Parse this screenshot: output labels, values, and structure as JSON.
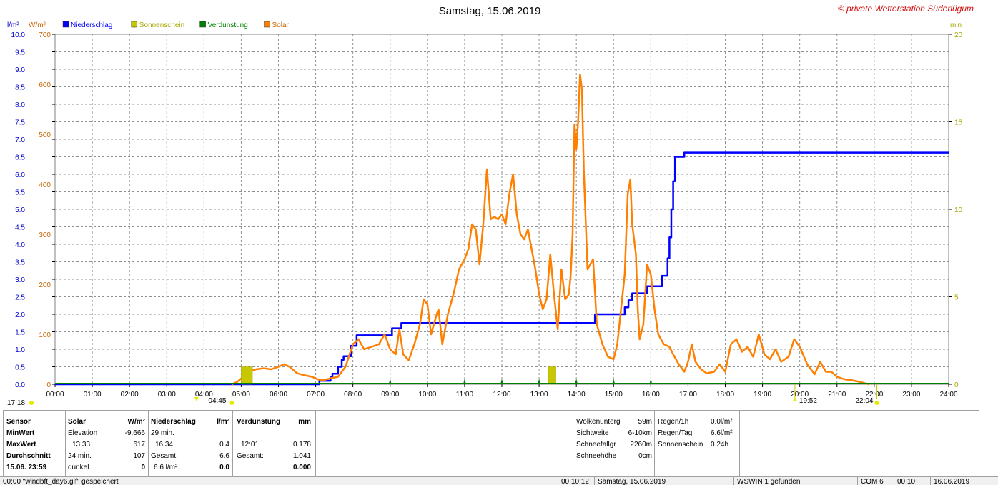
{
  "chart_data": {
    "type": "line",
    "title": "Samstag, 15.06.2019",
    "copyright": "© private Wetterstation Süderlügum",
    "left_unit_rain": "l/m²",
    "left_unit_solar": "W/m²",
    "right_unit": "min",
    "legend": [
      {
        "name": "Niederschlag",
        "color": "#0000ff"
      },
      {
        "name": "Sonnenschein",
        "color": "#c8c800"
      },
      {
        "name": "Verdunstung",
        "color": "#008000"
      },
      {
        "name": "Solar",
        "color": "#ff8000"
      }
    ],
    "x_range_hours": [
      0,
      24
    ],
    "x_ticks": [
      "00:00",
      "01:00",
      "02:00",
      "03:00",
      "04:00",
      "05:00",
      "06:00",
      "07:00",
      "08:00",
      "09:00",
      "10:00",
      "11:00",
      "12:00",
      "13:00",
      "14:00",
      "15:00",
      "16:00",
      "17:00",
      "18:00",
      "19:00",
      "20:00",
      "21:00",
      "22:00",
      "23:00",
      "24:00"
    ],
    "rain_axis": {
      "range": [
        0,
        10
      ],
      "ticks": [
        "0.0",
        "0.5",
        "1.0",
        "1.5",
        "2.0",
        "2.5",
        "3.0",
        "3.5",
        "4.0",
        "4.5",
        "5.0",
        "5.5",
        "6.0",
        "6.5",
        "7.0",
        "7.5",
        "8.0",
        "8.5",
        "9.0",
        "9.5",
        "10.0"
      ]
    },
    "solar_axis": {
      "range": [
        0,
        700
      ],
      "ticks": [
        "0",
        "100",
        "200",
        "300",
        "400",
        "500",
        "600",
        "700"
      ]
    },
    "sun_axis": {
      "range": [
        0,
        20
      ],
      "ticks": [
        "0",
        "5",
        "10",
        "15",
        "20"
      ]
    },
    "annotations": {
      "moon_rise": "17:18",
      "sunrise_marker": "04:45",
      "sunset_marker": "19:52",
      "moon_set": "22:04",
      "marker_times_h": [
        -1.2,
        4.75,
        19.87,
        22.07
      ]
    },
    "series": [
      {
        "name": "Niederschlag",
        "axis": "rain",
        "color": "#0000ff",
        "step": true,
        "points": [
          [
            0,
            0
          ],
          [
            7.05,
            0
          ],
          [
            7.1,
            0.1
          ],
          [
            7.3,
            0.1
          ],
          [
            7.4,
            0.2
          ],
          [
            7.45,
            0.3
          ],
          [
            7.6,
            0.5
          ],
          [
            7.7,
            0.7
          ],
          [
            7.75,
            0.8
          ],
          [
            7.95,
            1.1
          ],
          [
            8.1,
            1.4
          ],
          [
            9.0,
            1.4
          ],
          [
            9.05,
            1.6
          ],
          [
            9.25,
            1.6
          ],
          [
            9.3,
            1.75
          ],
          [
            14.45,
            1.75
          ],
          [
            14.5,
            2.0
          ],
          [
            15.25,
            2.0
          ],
          [
            15.3,
            2.2
          ],
          [
            15.4,
            2.4
          ],
          [
            15.5,
            2.6
          ],
          [
            15.85,
            2.6
          ],
          [
            15.9,
            2.8
          ],
          [
            16.2,
            2.8
          ],
          [
            16.3,
            3.1
          ],
          [
            16.45,
            3.6
          ],
          [
            16.5,
            4.2
          ],
          [
            16.55,
            5.0
          ],
          [
            16.6,
            5.8
          ],
          [
            16.65,
            6.5
          ],
          [
            16.85,
            6.5
          ],
          [
            16.9,
            6.62
          ],
          [
            24,
            6.62
          ]
        ]
      },
      {
        "name": "Solar",
        "axis": "solar",
        "color": "#ff8000",
        "points": [
          [
            4.75,
            0
          ],
          [
            4.9,
            5
          ],
          [
            5.05,
            15
          ],
          [
            5.2,
            25
          ],
          [
            5.4,
            30
          ],
          [
            5.6,
            32
          ],
          [
            5.8,
            30
          ],
          [
            6.0,
            35
          ],
          [
            6.15,
            40
          ],
          [
            6.3,
            35
          ],
          [
            6.5,
            22
          ],
          [
            6.7,
            18
          ],
          [
            6.9,
            15
          ],
          [
            7.05,
            10
          ],
          [
            7.2,
            8
          ],
          [
            7.4,
            12
          ],
          [
            7.6,
            15
          ],
          [
            7.8,
            35
          ],
          [
            8.0,
            80
          ],
          [
            8.15,
            90
          ],
          [
            8.3,
            70
          ],
          [
            8.5,
            75
          ],
          [
            8.7,
            80
          ],
          [
            8.85,
            100
          ],
          [
            9.0,
            70
          ],
          [
            9.15,
            60
          ],
          [
            9.25,
            110
          ],
          [
            9.35,
            60
          ],
          [
            9.5,
            48
          ],
          [
            9.65,
            80
          ],
          [
            9.8,
            120
          ],
          [
            9.9,
            170
          ],
          [
            10.0,
            160
          ],
          [
            10.1,
            100
          ],
          [
            10.25,
            140
          ],
          [
            10.3,
            150
          ],
          [
            10.4,
            80
          ],
          [
            10.55,
            140
          ],
          [
            10.7,
            180
          ],
          [
            10.85,
            230
          ],
          [
            11.0,
            250
          ],
          [
            11.1,
            270
          ],
          [
            11.2,
            320
          ],
          [
            11.3,
            310
          ],
          [
            11.4,
            240
          ],
          [
            11.5,
            320
          ],
          [
            11.6,
            430
          ],
          [
            11.7,
            330
          ],
          [
            11.8,
            335
          ],
          [
            11.9,
            330
          ],
          [
            12.0,
            340
          ],
          [
            12.1,
            320
          ],
          [
            12.2,
            380
          ],
          [
            12.3,
            420
          ],
          [
            12.4,
            340
          ],
          [
            12.5,
            300
          ],
          [
            12.6,
            290
          ],
          [
            12.7,
            310
          ],
          [
            12.8,
            270
          ],
          [
            12.9,
            230
          ],
          [
            13.0,
            180
          ],
          [
            13.1,
            150
          ],
          [
            13.2,
            170
          ],
          [
            13.3,
            260
          ],
          [
            13.4,
            180
          ],
          [
            13.5,
            110
          ],
          [
            13.6,
            230
          ],
          [
            13.7,
            170
          ],
          [
            13.8,
            180
          ],
          [
            13.85,
            220
          ],
          [
            13.9,
            300
          ],
          [
            13.95,
            520
          ],
          [
            14.0,
            470
          ],
          [
            14.05,
            530
          ],
          [
            14.1,
            620
          ],
          [
            14.15,
            590
          ],
          [
            14.2,
            430
          ],
          [
            14.3,
            230
          ],
          [
            14.45,
            250
          ],
          [
            14.55,
            120
          ],
          [
            14.7,
            80
          ],
          [
            14.85,
            55
          ],
          [
            15.0,
            50
          ],
          [
            15.1,
            80
          ],
          [
            15.2,
            150
          ],
          [
            15.3,
            220
          ],
          [
            15.38,
            380
          ],
          [
            15.45,
            410
          ],
          [
            15.5,
            320
          ],
          [
            15.6,
            260
          ],
          [
            15.65,
            150
          ],
          [
            15.7,
            90
          ],
          [
            15.8,
            120
          ],
          [
            15.9,
            240
          ],
          [
            16.0,
            220
          ],
          [
            16.1,
            150
          ],
          [
            16.2,
            100
          ],
          [
            16.35,
            80
          ],
          [
            16.5,
            75
          ],
          [
            16.6,
            60
          ],
          [
            16.75,
            40
          ],
          [
            16.9,
            25
          ],
          [
            17.0,
            45
          ],
          [
            17.1,
            80
          ],
          [
            17.2,
            45
          ],
          [
            17.35,
            30
          ],
          [
            17.5,
            22
          ],
          [
            17.7,
            25
          ],
          [
            17.85,
            40
          ],
          [
            18.0,
            25
          ],
          [
            18.15,
            80
          ],
          [
            18.3,
            90
          ],
          [
            18.45,
            65
          ],
          [
            18.6,
            75
          ],
          [
            18.75,
            55
          ],
          [
            18.9,
            100
          ],
          [
            19.05,
            60
          ],
          [
            19.2,
            50
          ],
          [
            19.35,
            70
          ],
          [
            19.5,
            45
          ],
          [
            19.7,
            55
          ],
          [
            19.85,
            90
          ],
          [
            20.0,
            75
          ],
          [
            20.2,
            40
          ],
          [
            20.4,
            20
          ],
          [
            20.55,
            45
          ],
          [
            20.7,
            25
          ],
          [
            20.85,
            25
          ],
          [
            21.0,
            15
          ],
          [
            21.2,
            10
          ],
          [
            21.4,
            8
          ],
          [
            21.6,
            5
          ],
          [
            21.75,
            2
          ],
          [
            21.85,
            0
          ]
        ]
      },
      {
        "name": "Sonnenschein",
        "axis": "sun",
        "color": "#c8c800",
        "bars": [
          [
            5.0,
            5.3,
            1.0
          ],
          [
            13.25,
            13.45,
            1.0
          ]
        ]
      },
      {
        "name": "Verdunstung",
        "axis": "rain",
        "color": "#008000",
        "ticks_h": [
          9.0,
          11.0,
          12.0,
          13.0,
          14.0,
          15.0,
          16.0
        ]
      }
    ]
  },
  "panel": {
    "sensor": {
      "header": "Sensor",
      "rows": [
        "MinWert",
        "MaxWert",
        "Durchschnitt",
        "15.06.  23:59"
      ]
    },
    "solar": {
      "header": "Solar",
      "unit": "W/m²",
      "rows": [
        [
          "Elevation",
          "-9.666"
        ],
        [
          "13:33",
          "617"
        ],
        [
          "24 min.",
          "107"
        ],
        [
          "dunkel",
          "0"
        ]
      ]
    },
    "niederschlag": {
      "header": "Niederschlag",
      "unit": "l/m²",
      "rows": [
        [
          "29 min.",
          ""
        ],
        [
          "16:34",
          "0.4"
        ],
        [
          "Gesamt:",
          "6.6"
        ],
        [
          "6.6 l/m²",
          "0.0"
        ]
      ]
    },
    "verdunstung": {
      "header": "Verdunstung",
      "unit": "mm",
      "rows": [
        [
          "",
          ""
        ],
        [
          "12:01",
          "0.178"
        ],
        [
          "Gesamt:",
          "1.041"
        ],
        [
          "",
          "0.000"
        ]
      ]
    },
    "cloud": {
      "rows": [
        [
          "Wolkenunterg",
          "59m"
        ],
        [
          "Sichtweite",
          "6-10km"
        ],
        [
          "Schneefallgr",
          "2260m"
        ],
        [
          "Schneehöhe",
          "0cm"
        ]
      ]
    },
    "rain_info": {
      "rows": [
        [
          "Regen/1h",
          "0.0l/m²"
        ],
        [
          "Regen/Tag",
          "6.6l/m²"
        ],
        [
          "Sonnenschein",
          "0.24h"
        ]
      ]
    }
  },
  "statusbar": {
    "message": "00:00  \"windbft_day6.gif\" gespeichert",
    "time": "00:10:12",
    "date_text": "Samstag, 15.06.2019",
    "device": "WSWIN 1 gefunden",
    "port": "COM 6",
    "clock": "00:10",
    "date": "16.06.2019"
  }
}
